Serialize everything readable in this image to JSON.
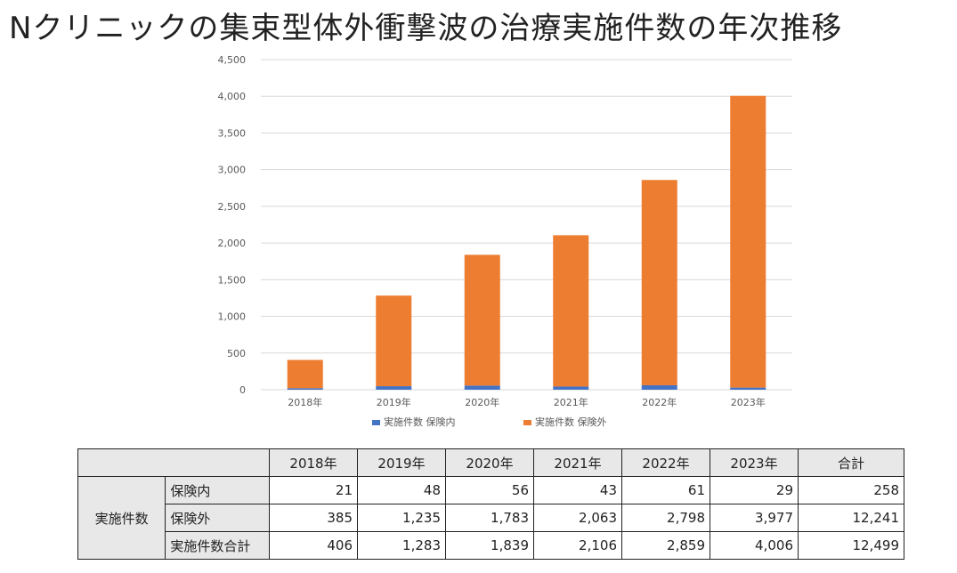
{
  "title": "Nクリニックの集束型体外衝撃波の治療実施件数の年次推移",
  "colors": {
    "insured": "#4472c4",
    "uninsured": "#ed7d31",
    "gridline": "#d9d9d9",
    "axis_text": "#595959"
  },
  "chart_data": {
    "type": "bar",
    "stacked": true,
    "title": "",
    "xlabel": "",
    "ylabel": "",
    "categories": [
      "2018年",
      "2019年",
      "2020年",
      "2021年",
      "2022年",
      "2023年"
    ],
    "series": [
      {
        "name": "実施件数 保険内",
        "values": [
          21,
          48,
          56,
          43,
          61,
          29
        ]
      },
      {
        "name": "実施件数 保険外",
        "values": [
          385,
          1235,
          1783,
          2063,
          2798,
          3977
        ]
      }
    ],
    "ylim": [
      0,
      4500
    ],
    "yticks": [
      0,
      500,
      1000,
      1500,
      2000,
      2500,
      3000,
      3500,
      4000,
      4500
    ],
    "ytick_labels": [
      "0",
      "500",
      "1,000",
      "1,500",
      "2,000",
      "2,500",
      "3,000",
      "3,500",
      "4,000",
      "4,500"
    ],
    "grid": true,
    "legend_position": "bottom"
  },
  "table": {
    "header": [
      "",
      "2018年",
      "2019年",
      "2020年",
      "2021年",
      "2022年",
      "2023年",
      "合計"
    ],
    "group_label": "実施件数",
    "rows": [
      {
        "label": "保険内",
        "values": [
          "21",
          "48",
          "56",
          "43",
          "61",
          "29",
          "258"
        ]
      },
      {
        "label": "保険外",
        "values": [
          "385",
          "1,235",
          "1,783",
          "2,063",
          "2,798",
          "3,977",
          "12,241"
        ]
      },
      {
        "label": "実施件数合計",
        "values": [
          "406",
          "1,283",
          "1,839",
          "2,106",
          "2,859",
          "4,006",
          "12,499"
        ]
      }
    ]
  }
}
